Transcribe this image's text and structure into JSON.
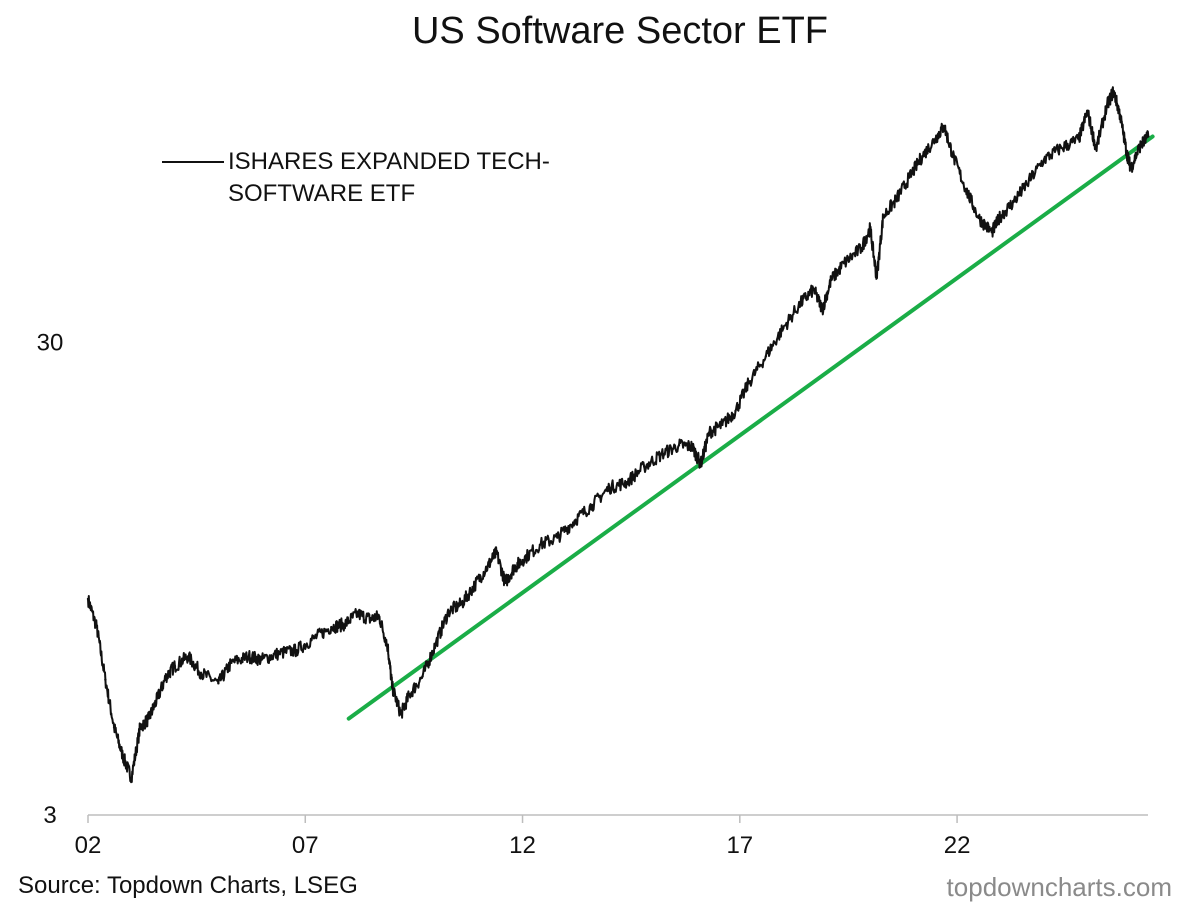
{
  "chart_data": {
    "type": "line",
    "title": "US Software Sector ETF",
    "xlabel": "",
    "ylabel": "",
    "y_scale": "log",
    "ylim": [
      3,
      100
    ],
    "xlim": [
      2002,
      2026.5
    ],
    "x_ticks": [
      2002,
      2007,
      2012,
      2017,
      2022
    ],
    "x_tick_labels": [
      "02",
      "07",
      "12",
      "17",
      "22"
    ],
    "y_ticks": [
      3,
      30
    ],
    "y_tick_labels": [
      "3",
      "30"
    ],
    "legend_position": "top-left",
    "grid": false,
    "series": [
      {
        "name": "ISHARES EXPANDED TECH-SOFTWARE ETF",
        "color": "#111111",
        "x": [
          2002.0,
          2002.2,
          2002.4,
          2002.6,
          2002.8,
          2003.0,
          2003.2,
          2003.4,
          2003.6,
          2003.8,
          2004.0,
          2004.3,
          2004.6,
          2005.0,
          2005.3,
          2005.7,
          2006.0,
          2006.4,
          2006.8,
          2007.2,
          2007.6,
          2007.9,
          2008.2,
          2008.5,
          2008.7,
          2008.9,
          2009.0,
          2009.2,
          2009.4,
          2009.7,
          2010.0,
          2010.3,
          2010.6,
          2010.9,
          2011.2,
          2011.4,
          2011.6,
          2011.8,
          2012.0,
          2012.4,
          2012.8,
          2013.2,
          2013.6,
          2014.0,
          2014.4,
          2014.8,
          2015.2,
          2015.6,
          2015.9,
          2016.1,
          2016.3,
          2016.6,
          2016.9,
          2017.2,
          2017.6,
          2018.0,
          2018.4,
          2018.7,
          2018.9,
          2019.1,
          2019.4,
          2019.8,
          2020.0,
          2020.15,
          2020.3,
          2020.6,
          2020.9,
          2021.2,
          2021.5,
          2021.7,
          2021.9,
          2022.2,
          2022.5,
          2022.8,
          2023.0,
          2023.3,
          2023.6,
          2024.0,
          2024.4,
          2024.8,
          2025.0,
          2025.2,
          2025.45,
          2025.6,
          2025.75,
          2025.9,
          2026.0,
          2026.2,
          2026.4
        ],
        "values": [
          8.6,
          7.5,
          5.8,
          4.6,
          4.0,
          3.6,
          4.6,
          4.8,
          5.3,
          5.9,
          6.2,
          6.5,
          6.0,
          5.7,
          6.3,
          6.5,
          6.4,
          6.6,
          6.7,
          7.1,
          7.5,
          7.6,
          8.0,
          7.8,
          7.9,
          6.8,
          5.6,
          4.9,
          5.4,
          5.9,
          6.9,
          8.1,
          8.4,
          9.2,
          10.1,
          10.8,
          9.3,
          10.0,
          10.4,
          11.2,
          11.6,
          12.6,
          13.6,
          14.8,
          15.2,
          16.4,
          17.4,
          18.2,
          18.1,
          16.6,
          19.4,
          20.1,
          21.5,
          24.6,
          28.1,
          32.2,
          36.4,
          38.9,
          35.3,
          40.7,
          44.2,
          47.6,
          52.4,
          41.2,
          55.5,
          60.3,
          67.1,
          74.5,
          81.1,
          86.3,
          74.9,
          63.5,
          55.1,
          51.4,
          55.6,
          59.6,
          64.9,
          73.3,
          77.6,
          80.8,
          92.7,
          77.1,
          95.4,
          102.3,
          91.2,
          76.0,
          70.2,
          78.0,
          82.0
        ]
      }
    ],
    "annotations": [
      {
        "type": "trendline",
        "color": "#1aad47",
        "x": [
          2008.0,
          2026.5
        ],
        "values": [
          4.8,
          82.0
        ]
      }
    ]
  },
  "footer": {
    "source": "Source: Topdown Charts, LSEG",
    "brand": "topdowncharts.com"
  }
}
